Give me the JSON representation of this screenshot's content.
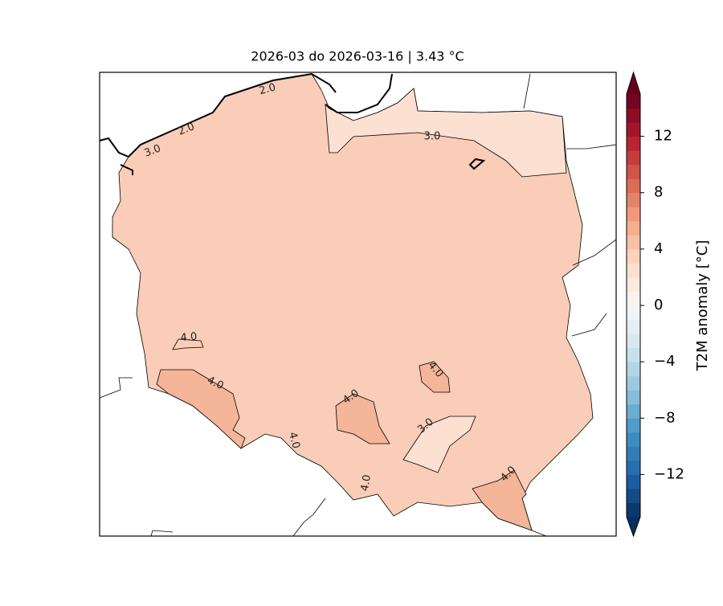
{
  "chart_data": {
    "type": "contour-map",
    "title": "2026-03 do 2026-03-16 | 3.43 °C",
    "contour_labels": [
      "2.0",
      "2.0",
      "3.0",
      "3.0",
      "4.0",
      "4.0",
      "4.0",
      "4.0",
      "3.0",
      "4.0",
      "4.0",
      "4.0"
    ],
    "colorbar": {
      "label": "T2M anomaly [°C]",
      "lim": [
        -15,
        15
      ],
      "levels": [
        -15,
        -14,
        -13,
        -12,
        -11,
        -10,
        -9,
        -8,
        -7,
        -6,
        -5,
        -4,
        -3,
        -2,
        -1,
        0,
        1,
        2,
        3,
        4,
        5,
        6,
        7,
        8,
        9,
        10,
        11,
        12,
        13,
        14,
        15
      ],
      "ticks": [
        {
          "value": -12,
          "label": "−12"
        },
        {
          "value": -8,
          "label": "−8"
        },
        {
          "value": -4,
          "label": "−4"
        },
        0,
        4,
        8,
        12
      ],
      "cmap": [
        "#053061",
        "#2166ac",
        "#4393c3",
        "#92c5de",
        "#d1e5f0",
        "#f7f7f7",
        "#fddbc7",
        "#f4a582",
        "#d6604d",
        "#b2182b",
        "#67001f"
      ],
      "extend": "both"
    }
  }
}
